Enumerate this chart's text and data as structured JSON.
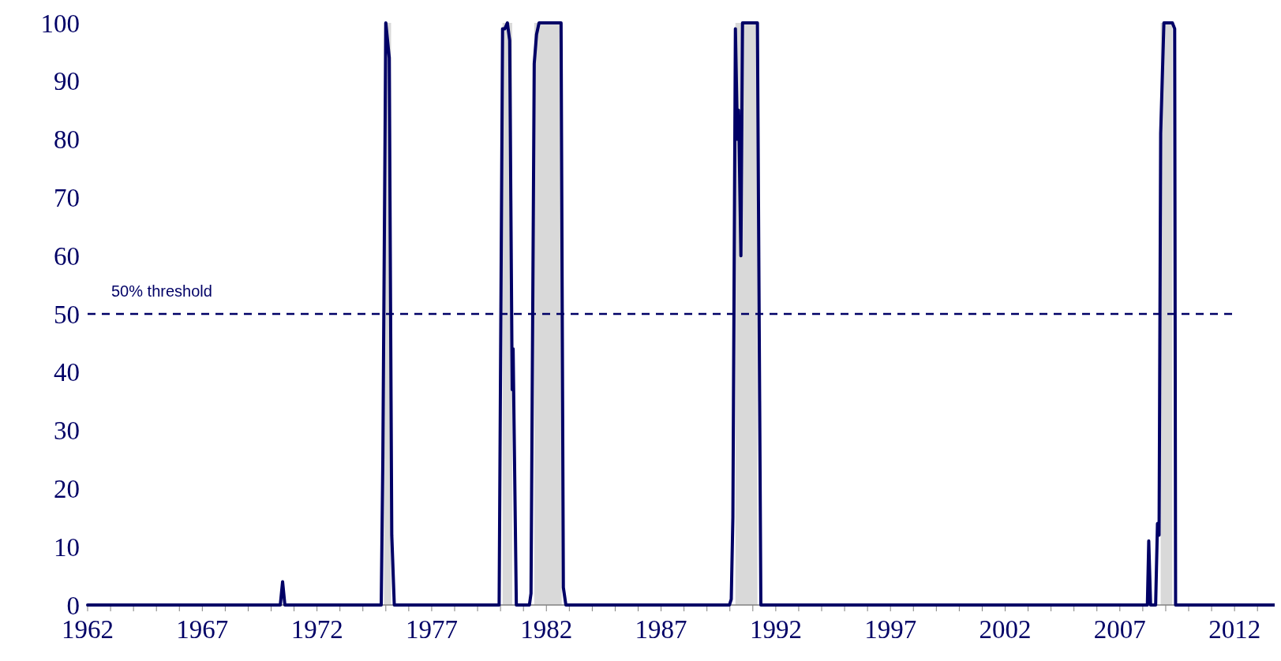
{
  "chart_data": {
    "type": "line",
    "x": [
      1962,
      1970.4,
      1970.5,
      1970.6,
      1974.8,
      1974.87,
      1975.0,
      1975.15,
      1975.26,
      1975.37,
      1979.94,
      1980.09,
      1980.19,
      1980.3,
      1980.4,
      1980.51,
      1980.55,
      1980.69,
      1981.26,
      1981.33,
      1981.47,
      1981.57,
      1981.68,
      1982.64,
      1982.74,
      1982.85,
      1989.98,
      1990.06,
      1990.13,
      1990.24,
      1990.33,
      1990.38,
      1990.48,
      1990.55,
      1991.2,
      1991.35,
      2008.2,
      2008.26,
      2008.34,
      2008.56,
      2008.64,
      2008.71,
      2008.78,
      2008.92,
      2009.29,
      2009.39,
      2009.43,
      2013.75
    ],
    "series": [
      {
        "color": "#000066",
        "values": [
          0,
          0,
          4,
          0,
          0,
          25,
          100,
          94,
          12,
          0,
          0,
          99,
          99,
          100,
          97,
          37,
          44,
          0,
          0,
          2,
          93,
          98,
          100,
          100,
          3,
          0,
          0,
          1,
          15,
          99,
          80,
          85,
          60,
          100,
          100,
          0,
          0,
          11,
          0,
          0,
          14,
          12,
          81,
          100,
          100,
          99,
          0,
          0
        ]
      }
    ],
    "xlim": [
      1962,
      2013.75
    ],
    "xticks": [
      1962,
      {
        "value": 1963,
        "label": null
      },
      {
        "value": 1964,
        "label": null
      },
      {
        "value": 1965,
        "label": null
      },
      {
        "value": 1966,
        "label": null
      },
      1967,
      {
        "value": 1968,
        "label": null
      },
      {
        "value": 1969,
        "label": null
      },
      {
        "value": 1970,
        "label": null
      },
      {
        "value": 1971,
        "label": null
      },
      1972,
      {
        "value": 1973,
        "label": null
      },
      {
        "value": 1974,
        "label": null
      },
      {
        "value": 1975,
        "label": null
      },
      {
        "value": 1976,
        "label": null
      },
      1977,
      {
        "value": 1978,
        "label": null
      },
      {
        "value": 1979,
        "label": null
      },
      {
        "value": 1980,
        "label": null
      },
      {
        "value": 1981,
        "label": null
      },
      1982,
      {
        "value": 1983,
        "label": null
      },
      {
        "value": 1984,
        "label": null
      },
      {
        "value": 1985,
        "label": null
      },
      {
        "value": 1986,
        "label": null
      },
      1987,
      {
        "value": 1988,
        "label": null
      },
      {
        "value": 1989,
        "label": null
      },
      {
        "value": 1990,
        "label": null
      },
      {
        "value": 1991,
        "label": null
      },
      1992,
      {
        "value": 1993,
        "label": null
      },
      {
        "value": 1994,
        "label": null
      },
      {
        "value": 1995,
        "label": null
      },
      {
        "value": 1996,
        "label": null
      },
      1997,
      {
        "value": 1998,
        "label": null
      },
      {
        "value": 1999,
        "label": null
      },
      {
        "value": 2000,
        "label": null
      },
      {
        "value": 2001,
        "label": null
      },
      2002,
      {
        "value": 2003,
        "label": null
      },
      {
        "value": 2004,
        "label": null
      },
      {
        "value": 2005,
        "label": null
      },
      {
        "value": 2006,
        "label": null
      },
      2007,
      {
        "value": 2008,
        "label": null
      },
      {
        "value": 2009,
        "label": null
      },
      {
        "value": 2010,
        "label": null
      },
      {
        "value": 2011,
        "label": null
      },
      2012,
      {
        "value": 2013,
        "label": null
      }
    ],
    "ylim": [
      0,
      100
    ],
    "yticks": [
      0,
      10,
      20,
      30,
      40,
      50,
      60,
      70,
      80,
      90,
      100
    ],
    "grid": false,
    "marker": "none",
    "line_style": "solid",
    "ref_lines": [
      {
        "axis": "y",
        "value": 50,
        "label": "50% threshold",
        "color": "#000066",
        "line_style": "dashed"
      }
    ],
    "bands": [
      {
        "axis": "x",
        "from": 1974.92,
        "to": 1975.23,
        "color": "#d9d9d9"
      },
      {
        "axis": "x",
        "from": 1980.09,
        "to": 1980.51,
        "color": "#d9d9d9"
      },
      {
        "axis": "x",
        "from": 1981.47,
        "to": 1982.67,
        "color": "#d9d9d9"
      },
      {
        "axis": "x",
        "from": 1990.24,
        "to": 1991.2,
        "color": "#d9d9d9"
      },
      {
        "axis": "x",
        "from": 2008.78,
        "to": 2009.29,
        "color": "#d9d9d9"
      }
    ]
  }
}
